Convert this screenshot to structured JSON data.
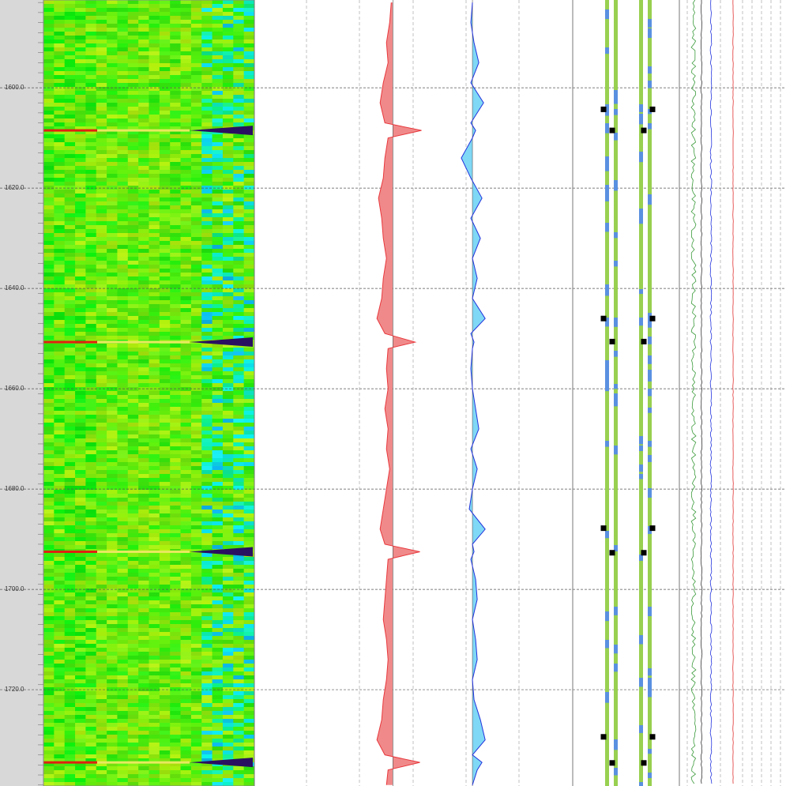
{
  "depth_axis": {
    "lim": [
      1582.5,
      1739.2
    ],
    "ticks": [
      {
        "value": 1600,
        "label": "1600.0"
      },
      {
        "value": 1620,
        "label": "1620.0"
      },
      {
        "value": 1640,
        "label": "1640.0"
      },
      {
        "value": 1660,
        "label": "1660.0"
      },
      {
        "value": 1680,
        "label": "1680.0"
      },
      {
        "value": 1700,
        "label": "1700.0"
      },
      {
        "value": 1720,
        "label": "1720.0"
      }
    ]
  },
  "image_track": {
    "spikes": [
      1608.5,
      1650.7,
      1692.5,
      1734.5
    ]
  },
  "red_curve": {
    "color": "#e8383d",
    "fill": "#f08a8a",
    "xlim": [
      0,
      100
    ],
    "base": 43.5,
    "depth": [
      1583,
      1587,
      1591,
      1595,
      1599,
      1603,
      1607,
      1608.5,
      1610,
      1614,
      1618,
      1622,
      1626,
      1630,
      1634,
      1638,
      1642,
      1646,
      1649,
      1650.7,
      1652,
      1656,
      1660,
      1664,
      1668,
      1672,
      1676,
      1680,
      1684,
      1688,
      1691,
      1692.5,
      1694,
      1698,
      1702,
      1706,
      1710,
      1714,
      1718,
      1722,
      1726,
      1730,
      1733,
      1734.5,
      1736,
      1739
    ],
    "values": [
      43,
      42.5,
      41.5,
      42,
      40.5,
      39.5,
      41,
      52.5,
      42,
      41,
      40.5,
      39,
      40,
      40.5,
      41.5,
      40.5,
      40,
      38.5,
      41,
      50.5,
      42,
      41.5,
      42,
      41,
      42,
      41.5,
      42.5,
      41.5,
      40.5,
      39.5,
      41,
      52,
      42,
      41.5,
      41,
      40.5,
      41.5,
      42,
      41.5,
      40.5,
      40,
      38.5,
      41,
      52,
      42,
      41.5
    ]
  },
  "blue_curve": {
    "color": "#2233dd",
    "fill": "#7fd8f5",
    "xlim": [
      0,
      100
    ],
    "base": 68.5,
    "depth": [
      1583,
      1587,
      1591,
      1595,
      1599,
      1603,
      1607,
      1608.5,
      1610,
      1614,
      1618,
      1622,
      1626,
      1630,
      1634,
      1638,
      1642,
      1646,
      1649,
      1650.7,
      1652,
      1656,
      1660,
      1664,
      1668,
      1672,
      1676,
      1680,
      1684,
      1688,
      1691,
      1692.5,
      1694,
      1698,
      1702,
      1706,
      1710,
      1714,
      1718,
      1722,
      1726,
      1730,
      1733,
      1734.5,
      1736,
      1739
    ],
    "values": [
      68.5,
      68,
      69,
      70.5,
      68,
      72,
      68,
      69.5,
      68.5,
      65,
      68,
      71.5,
      68,
      71,
      68.5,
      70,
      68.5,
      72.5,
      68,
      69,
      68.5,
      68,
      68.5,
      69.5,
      70.5,
      68,
      70,
      68.5,
      67.5,
      72.5,
      68.5,
      69,
      68,
      69.5,
      70,
      68.5,
      69.5,
      70,
      68.5,
      69,
      71,
      72.5,
      68.5,
      71.5,
      70,
      68.5
    ]
  },
  "markers": {
    "outer": [
      1604.3,
      1646.0,
      1687.8,
      1729.4
    ],
    "inner": [
      1608.5,
      1650.6,
      1692.7,
      1734.6
    ]
  }
}
